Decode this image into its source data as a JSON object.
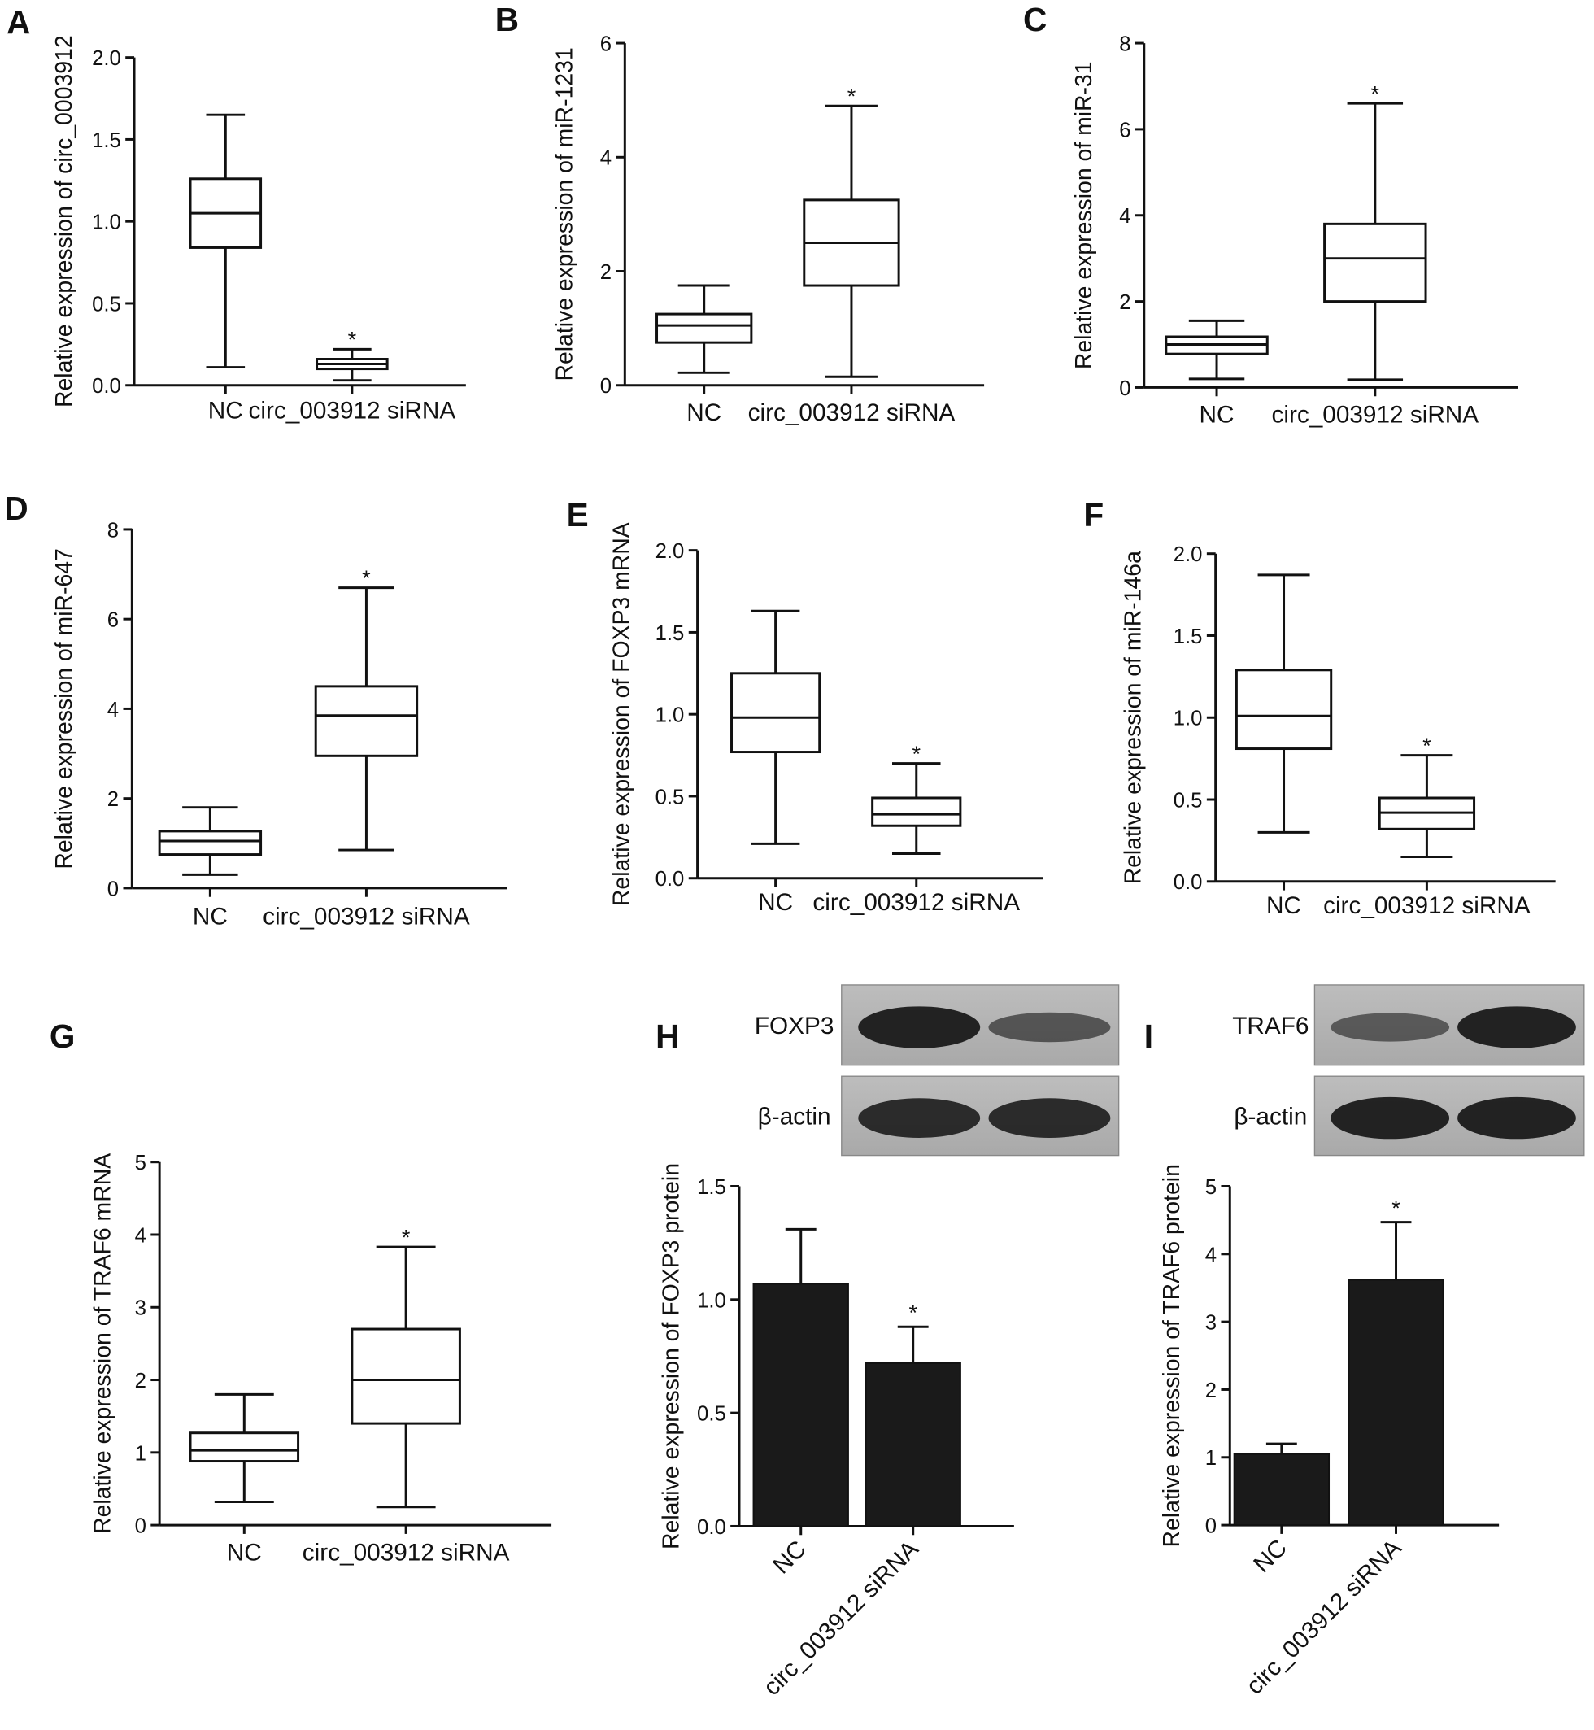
{
  "chart_data": [
    {
      "type": "box",
      "panel": "A",
      "ylabel": "Relative expression of circ_0003912",
      "categories": [
        "NC",
        "circ_003912 siRNA"
      ],
      "boxes": [
        {
          "min": 0.11,
          "q1": 0.84,
          "median": 1.05,
          "q3": 1.26,
          "max": 1.65
        },
        {
          "min": 0.03,
          "q1": 0.1,
          "median": 0.13,
          "q3": 0.16,
          "max": 0.22
        }
      ],
      "significance": [
        null,
        "*"
      ],
      "ylim": [
        0,
        2
      ],
      "yticks": [
        {
          "value": 0,
          "label": "0.0"
        },
        0.5,
        {
          "value": 1,
          "label": "1.0"
        },
        1.5,
        {
          "value": 2,
          "label": "2.0"
        }
      ]
    },
    {
      "type": "box",
      "panel": "B",
      "ylabel": "Relative expression of miR-1231",
      "categories": [
        "NC",
        "circ_003912 siRNA"
      ],
      "boxes": [
        {
          "min": 0.22,
          "q1": 0.75,
          "median": 1.05,
          "q3": 1.25,
          "max": 1.75
        },
        {
          "min": 0.15,
          "q1": 1.75,
          "median": 2.5,
          "q3": 3.25,
          "max": 4.9
        }
      ],
      "significance": [
        null,
        "*"
      ],
      "ylim": [
        0,
        6
      ],
      "yticks": [
        0,
        2,
        4,
        6
      ]
    },
    {
      "type": "box",
      "panel": "C",
      "ylabel": "Relative expression of miR-31",
      "categories": [
        "NC",
        "circ_003912 siRNA"
      ],
      "boxes": [
        {
          "min": 0.2,
          "q1": 0.78,
          "median": 1.0,
          "q3": 1.18,
          "max": 1.55
        },
        {
          "min": 0.18,
          "q1": 2.0,
          "median": 3.0,
          "q3": 3.8,
          "max": 6.6
        }
      ],
      "significance": [
        null,
        "*"
      ],
      "ylim": [
        0,
        8
      ],
      "yticks": [
        0,
        2,
        4,
        6,
        8
      ]
    },
    {
      "type": "box",
      "panel": "D",
      "ylabel": "Relative expression of miR-647",
      "categories": [
        "NC",
        "circ_003912 siRNA"
      ],
      "boxes": [
        {
          "min": 0.3,
          "q1": 0.75,
          "median": 1.05,
          "q3": 1.27,
          "max": 1.8
        },
        {
          "min": 0.85,
          "q1": 2.95,
          "median": 3.85,
          "q3": 4.5,
          "max": 6.7
        }
      ],
      "significance": [
        null,
        "*"
      ],
      "ylim": [
        0,
        8
      ],
      "yticks": [
        0,
        2,
        4,
        6,
        8
      ]
    },
    {
      "type": "box",
      "panel": "E",
      "ylabel": "Relative expression of FOXP3 mRNA",
      "categories": [
        "NC",
        "circ_003912 siRNA"
      ],
      "boxes": [
        {
          "min": 0.21,
          "q1": 0.77,
          "median": 0.98,
          "q3": 1.25,
          "max": 1.63
        },
        {
          "min": 0.15,
          "q1": 0.32,
          "median": 0.39,
          "q3": 0.49,
          "max": 0.7
        }
      ],
      "significance": [
        null,
        "*"
      ],
      "ylim": [
        0,
        2
      ],
      "yticks": [
        {
          "value": 0,
          "label": "0.0"
        },
        0.5,
        {
          "value": 1,
          "label": "1.0"
        },
        1.5,
        {
          "value": 2,
          "label": "2.0"
        }
      ]
    },
    {
      "type": "box",
      "panel": "F",
      "ylabel": "Relative expression of miR-146a",
      "categories": [
        "NC",
        "circ_003912 siRNA"
      ],
      "boxes": [
        {
          "min": 0.3,
          "q1": 0.81,
          "median": 1.01,
          "q3": 1.29,
          "max": 1.87
        },
        {
          "min": 0.15,
          "q1": 0.32,
          "median": 0.42,
          "q3": 0.51,
          "max": 0.77
        }
      ],
      "significance": [
        null,
        "*"
      ],
      "ylim": [
        0,
        2
      ],
      "yticks": [
        {
          "value": 0,
          "label": "0.0"
        },
        0.5,
        {
          "value": 1,
          "label": "1.0"
        },
        1.5,
        {
          "value": 2,
          "label": "2.0"
        }
      ]
    },
    {
      "type": "box",
      "panel": "G",
      "ylabel": "Relative expression of TRAF6 mRNA",
      "categories": [
        "NC",
        "circ_003912 siRNA"
      ],
      "boxes": [
        {
          "min": 0.32,
          "q1": 0.88,
          "median": 1.03,
          "q3": 1.27,
          "max": 1.8
        },
        {
          "min": 0.25,
          "q1": 1.4,
          "median": 2.0,
          "q3": 2.7,
          "max": 3.83
        }
      ],
      "significance": [
        null,
        "*"
      ],
      "ylim": [
        0,
        5
      ],
      "yticks": [
        0,
        1,
        2,
        3,
        4,
        5
      ]
    },
    {
      "type": "bar",
      "panel": "H",
      "ylabel": "Relative expression of FOXP3 protein",
      "categories": [
        "NC",
        "circ_003912 siRNA"
      ],
      "values": [
        1.07,
        0.72
      ],
      "errors": [
        0.24,
        0.16
      ],
      "color": "#1a1a1a",
      "significance": [
        null,
        "*"
      ],
      "blot_labels": [
        "FOXP3",
        "β-actin"
      ],
      "ylim": [
        0,
        1.5
      ],
      "yticks": [
        {
          "value": 0,
          "label": "0.0"
        },
        0.5,
        {
          "value": 1,
          "label": "1.0"
        },
        1.5
      ]
    },
    {
      "type": "bar",
      "panel": "I",
      "ylabel": "Relative expression of TRAF6 protein",
      "categories": [
        "NC",
        "circ_003912 siRNA"
      ],
      "values": [
        1.05,
        3.62
      ],
      "errors": [
        0.15,
        0.85
      ],
      "color": "#1a1a1a",
      "significance": [
        null,
        "*"
      ],
      "blot_labels": [
        "TRAF6",
        "β-actin"
      ],
      "ylim": [
        0,
        5
      ],
      "yticks": [
        0,
        1,
        2,
        3,
        4,
        5
      ]
    }
  ]
}
